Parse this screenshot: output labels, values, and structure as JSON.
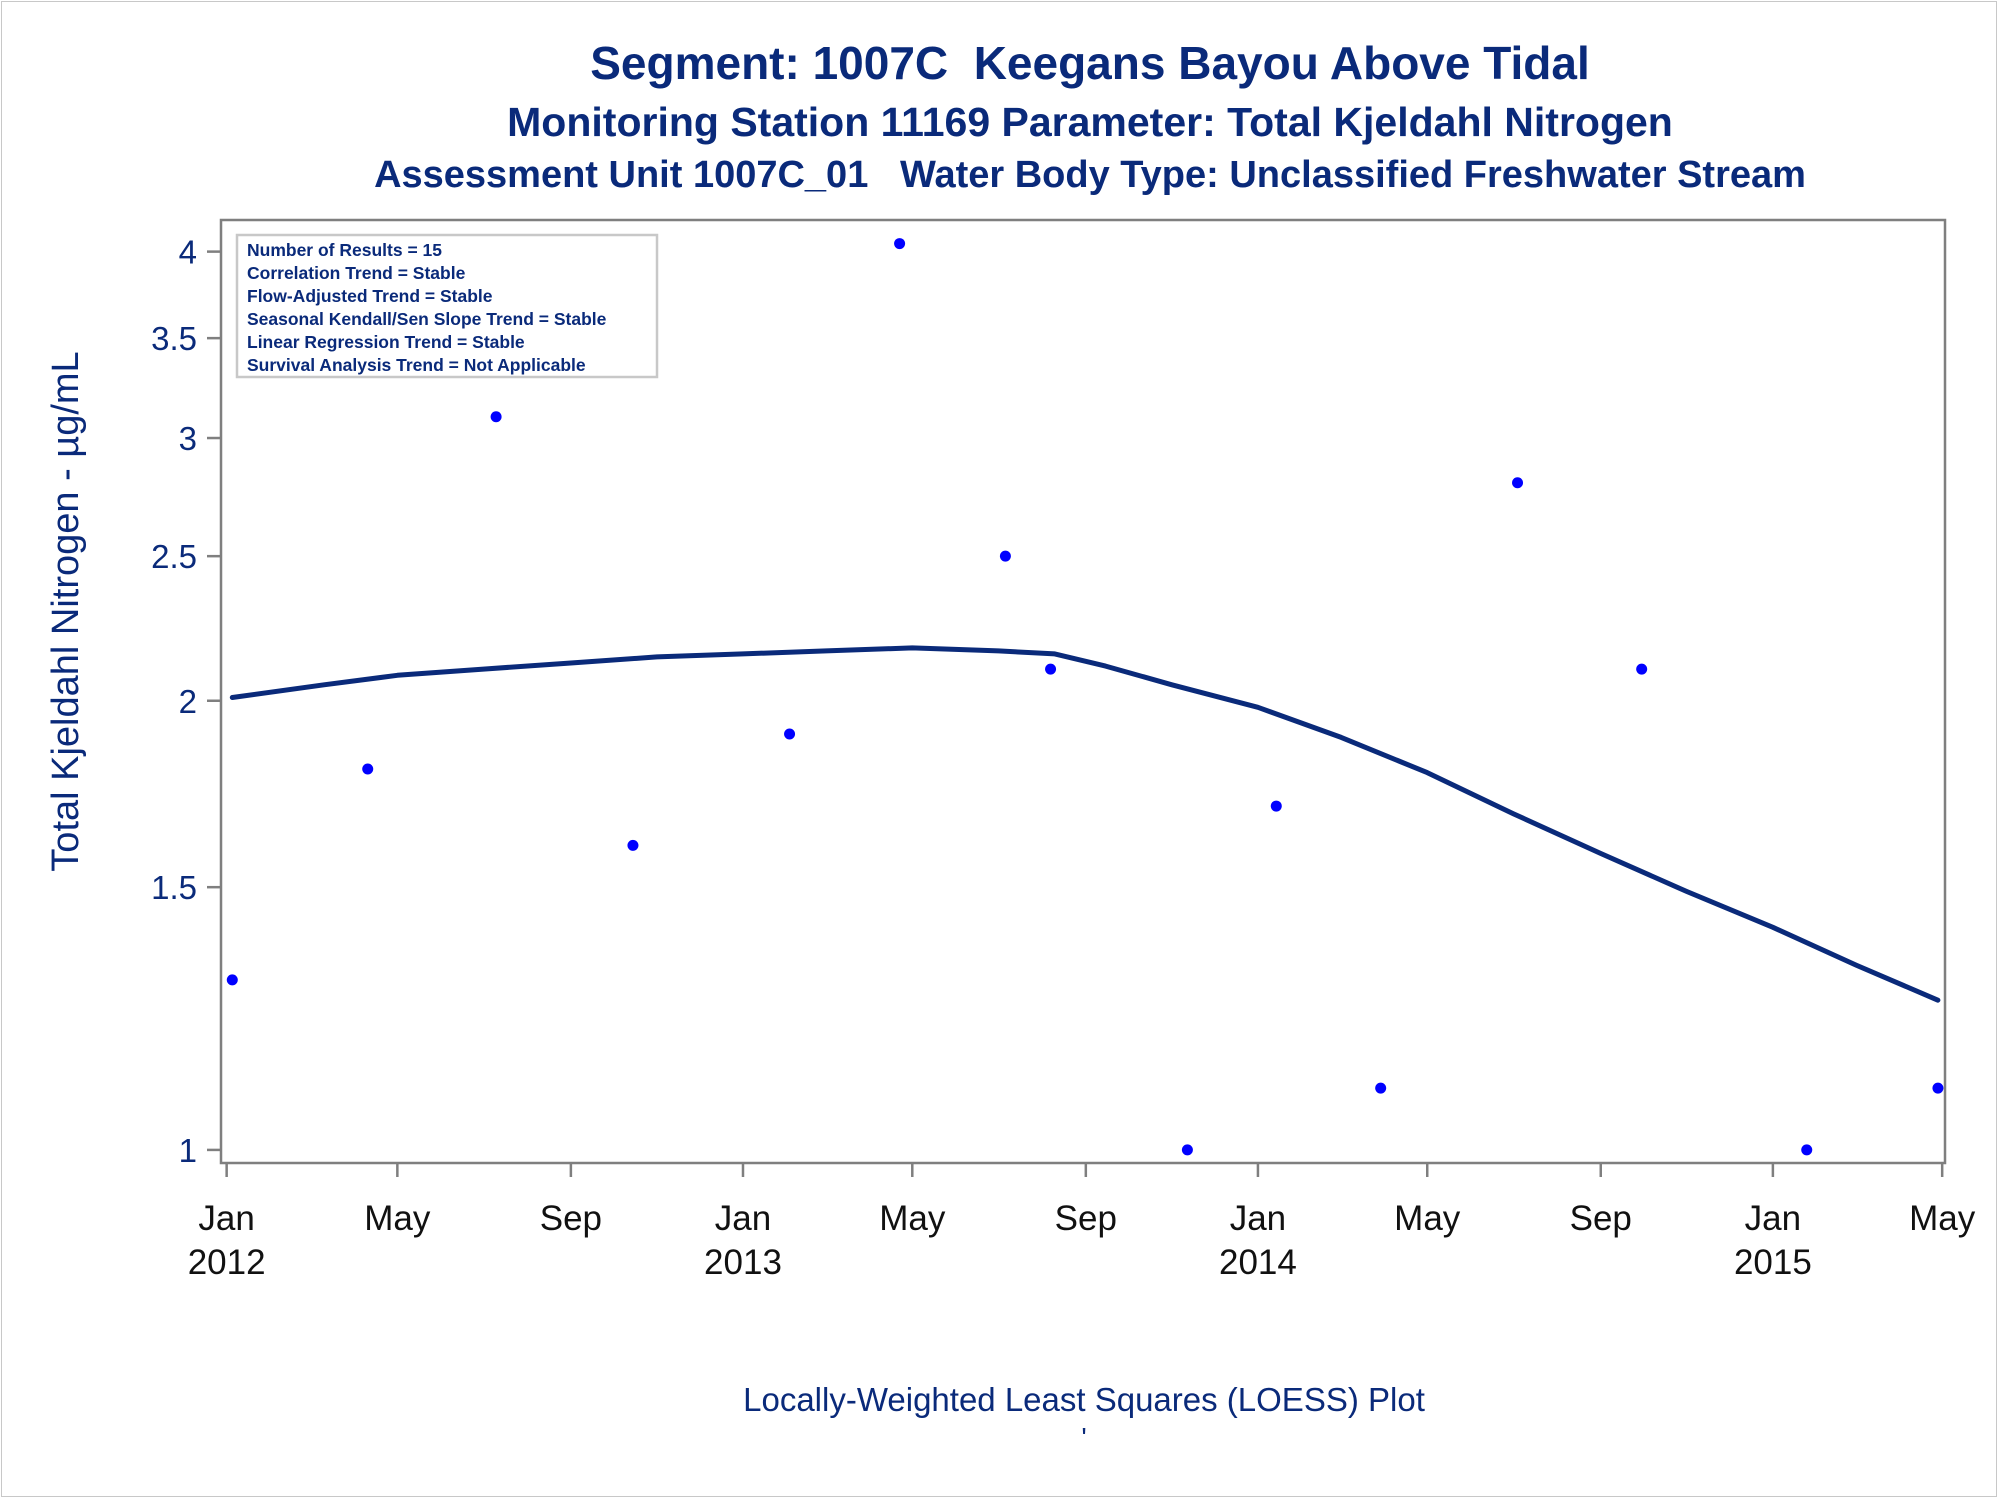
{
  "titles": {
    "line1": "Segment: 1007C  Keegans Bayou Above Tidal",
    "line2": "Monitoring Station 11169 Parameter: Total Kjeldahl Nitrogen",
    "line3": "Assessment Unit 1007C_01   Water Body Type: Unclassified Freshwater Stream"
  },
  "legend_box": [
    "Number of Results = 15",
    "Correlation Trend = Stable",
    "Flow-Adjusted Trend = Stable",
    "Seasonal Kendall/Sen Slope Trend = Stable",
    "Linear Regression Trend = Stable",
    "Survival Analysis Trend = Not Applicable"
  ],
  "footer": {
    "caption": "Locally-Weighted Least Squares (LOESS) Plot",
    "mark": "'"
  },
  "colors": {
    "text": "#0a2a7a",
    "points": "#0000ff",
    "loess_line": "#0a2a7a",
    "axis": "#7f7f7f"
  },
  "chart_data": {
    "type": "scatter",
    "title": "Segment: 1007C  Keegans Bayou Above Tidal",
    "ylabel": "Total Kjeldahl Nitrogen -  µg/mL",
    "xlabel": "",
    "y_scale": "log",
    "ylim": [
      0.98,
      4.2
    ],
    "xlim": [
      "2011-12-28",
      "2015-05-03"
    ],
    "y_ticks": [
      {
        "value": 1,
        "label": "1"
      },
      {
        "value": 1.5,
        "label": "1.5"
      },
      {
        "value": 2,
        "label": "2"
      },
      {
        "value": 2.5,
        "label": "2.5"
      },
      {
        "value": 3,
        "label": "3"
      },
      {
        "value": 3.5,
        "label": "3.5"
      },
      {
        "value": 4,
        "label": "4"
      }
    ],
    "x_ticks": [
      {
        "date": "2012-01-01",
        "label": "Jan",
        "year": "2012"
      },
      {
        "date": "2012-05-01",
        "label": "May",
        "year": ""
      },
      {
        "date": "2012-09-01",
        "label": "Sep",
        "year": ""
      },
      {
        "date": "2013-01-01",
        "label": "Jan",
        "year": "2013"
      },
      {
        "date": "2013-05-01",
        "label": "May",
        "year": ""
      },
      {
        "date": "2013-09-01",
        "label": "Sep",
        "year": ""
      },
      {
        "date": "2014-01-01",
        "label": "Jan",
        "year": "2014"
      },
      {
        "date": "2014-05-01",
        "label": "May",
        "year": ""
      },
      {
        "date": "2014-09-01",
        "label": "Sep",
        "year": ""
      },
      {
        "date": "2015-01-01",
        "label": "Jan",
        "year": "2015"
      },
      {
        "date": "2015-05-01",
        "label": "May",
        "year": ""
      }
    ],
    "series": [
      {
        "kind": "points",
        "points": [
          {
            "x": "2012-01-05",
            "y": 1.3
          },
          {
            "x": "2012-04-10",
            "y": 1.8
          },
          {
            "x": "2012-07-10",
            "y": 3.1
          },
          {
            "x": "2012-10-15",
            "y": 1.6
          },
          {
            "x": "2013-02-03",
            "y": 1.9
          },
          {
            "x": "2013-04-22",
            "y": 4.05
          },
          {
            "x": "2013-07-06",
            "y": 2.5
          },
          {
            "x": "2013-08-07",
            "y": 2.1
          },
          {
            "x": "2013-11-12",
            "y": 1.0
          },
          {
            "x": "2014-01-14",
            "y": 1.7
          },
          {
            "x": "2014-03-29",
            "y": 1.1
          },
          {
            "x": "2014-07-04",
            "y": 2.8
          },
          {
            "x": "2014-09-30",
            "y": 2.1
          },
          {
            "x": "2015-01-25",
            "y": 1.0
          },
          {
            "x": "2015-04-28",
            "y": 1.1
          }
        ]
      },
      {
        "kind": "loess",
        "points": [
          {
            "x": "2012-01-05",
            "y": 2.01
          },
          {
            "x": "2012-03-10",
            "y": 2.05
          },
          {
            "x": "2012-05-01",
            "y": 2.08
          },
          {
            "x": "2012-07-01",
            "y": 2.1
          },
          {
            "x": "2012-09-01",
            "y": 2.12
          },
          {
            "x": "2012-11-01",
            "y": 2.14
          },
          {
            "x": "2013-01-01",
            "y": 2.15
          },
          {
            "x": "2013-03-01",
            "y": 2.16
          },
          {
            "x": "2013-05-01",
            "y": 2.17
          },
          {
            "x": "2013-07-01",
            "y": 2.16
          },
          {
            "x": "2013-08-10",
            "y": 2.15
          },
          {
            "x": "2013-09-15",
            "y": 2.11
          },
          {
            "x": "2013-11-01",
            "y": 2.05
          },
          {
            "x": "2014-01-01",
            "y": 1.98
          },
          {
            "x": "2014-03-01",
            "y": 1.89
          },
          {
            "x": "2014-05-01",
            "y": 1.79
          },
          {
            "x": "2014-07-01",
            "y": 1.68
          },
          {
            "x": "2014-09-01",
            "y": 1.58
          },
          {
            "x": "2014-11-01",
            "y": 1.49
          },
          {
            "x": "2015-01-01",
            "y": 1.41
          },
          {
            "x": "2015-03-01",
            "y": 1.33
          },
          {
            "x": "2015-04-28",
            "y": 1.26
          }
        ]
      }
    ]
  }
}
